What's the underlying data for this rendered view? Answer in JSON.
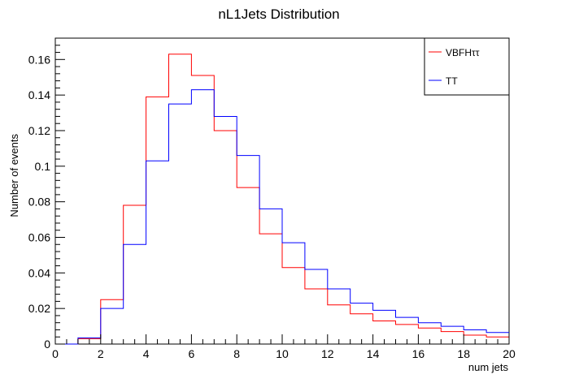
{
  "chart_data": {
    "type": "histogram-step",
    "title": "nL1Jets Distribution",
    "xlabel": "num jets",
    "ylabel": "Number of events",
    "xlim": [
      0,
      20
    ],
    "ylim": [
      0,
      0.172
    ],
    "bin_width": 1,
    "x_ticks": [
      0,
      2,
      4,
      6,
      8,
      10,
      12,
      14,
      16,
      18,
      20
    ],
    "y_ticks": [
      0,
      0.02,
      0.04,
      0.06,
      0.08,
      0.1,
      0.12,
      0.14,
      0.16
    ],
    "y_tick_labels": [
      "0",
      "0.02",
      "0.04",
      "0.06",
      "0.08",
      "0.1",
      "0.12",
      "0.14",
      "0.16"
    ],
    "grid": false,
    "legend_position": "top-right",
    "series": [
      {
        "name": "VBFHττ",
        "color": "#ff0000",
        "bin_edges_start": 0,
        "values": [
          0.0,
          0.003,
          0.025,
          0.078,
          0.139,
          0.163,
          0.151,
          0.12,
          0.088,
          0.062,
          0.043,
          0.031,
          0.022,
          0.017,
          0.013,
          0.011,
          0.009,
          0.007,
          0.005,
          0.004
        ]
      },
      {
        "name": "TT",
        "color": "#0000ff",
        "bin_edges_start": 0,
        "values": [
          0.0,
          0.0035,
          0.02,
          0.056,
          0.103,
          0.135,
          0.143,
          0.128,
          0.106,
          0.076,
          0.057,
          0.042,
          0.031,
          0.023,
          0.019,
          0.015,
          0.012,
          0.01,
          0.008,
          0.0065
        ]
      }
    ]
  }
}
